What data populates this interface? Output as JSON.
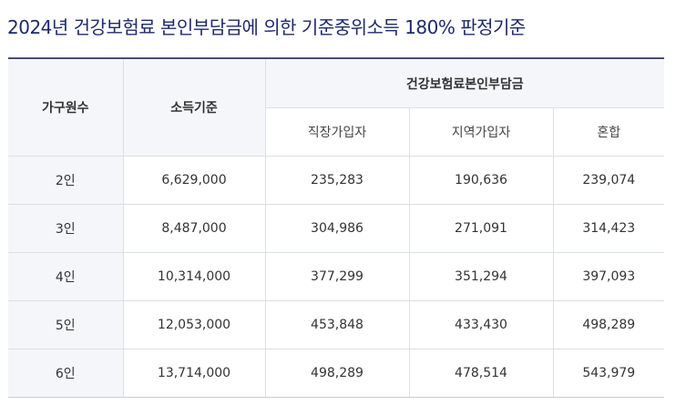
{
  "title": "2024년 건강보험료 본인부담금에 의한 기준중위소득 180% 판정기준",
  "table": {
    "headers": {
      "household": "가구원수",
      "income": "소득기준",
      "premium_group": "건강보험료본인부담금",
      "employee": "직장가입자",
      "regional": "지역가입자",
      "mixed": "혼합"
    },
    "rows": [
      {
        "household": "2인",
        "income": "6,629,000",
        "employee": "235,283",
        "regional": "190,636",
        "mixed": "239,074"
      },
      {
        "household": "3인",
        "income": "8,487,000",
        "employee": "304,986",
        "regional": "271,091",
        "mixed": "314,423"
      },
      {
        "household": "4인",
        "income": "10,314,000",
        "employee": "377,299",
        "regional": "351,294",
        "mixed": "397,093"
      },
      {
        "household": "5인",
        "income": "12,053,000",
        "employee": "453,848",
        "regional": "433,430",
        "mixed": "498,289"
      },
      {
        "household": "6인",
        "income": "13,714,000",
        "employee": "498,289",
        "regional": "478,514",
        "mixed": "543,979"
      }
    ]
  }
}
